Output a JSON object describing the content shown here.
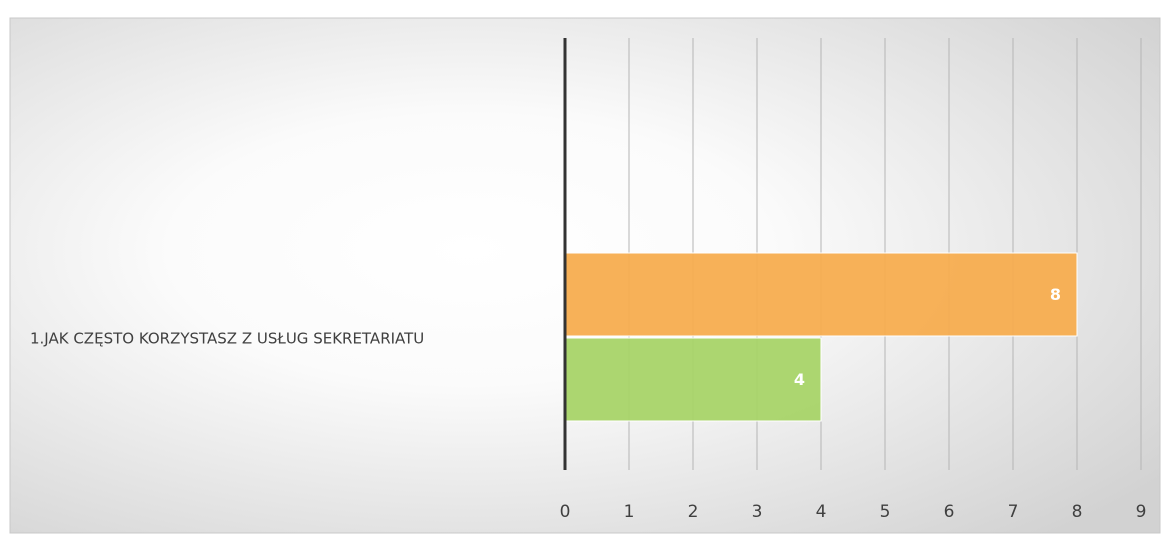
{
  "chart_data": {
    "type": "bar",
    "orientation": "horizontal",
    "categories": [
      "1.JAK CZĘSTO KORZYSTASZ Z USŁUG SEKRETARIATU"
    ],
    "series": [
      {
        "color": "#f7ad4f",
        "values": [
          8
        ]
      },
      {
        "color": "#a8d468",
        "values": [
          4
        ]
      }
    ],
    "xlim": [
      0,
      9
    ],
    "xticks": [
      0,
      1,
      2,
      3,
      4,
      5,
      6,
      7,
      8,
      9
    ],
    "grid": true
  }
}
